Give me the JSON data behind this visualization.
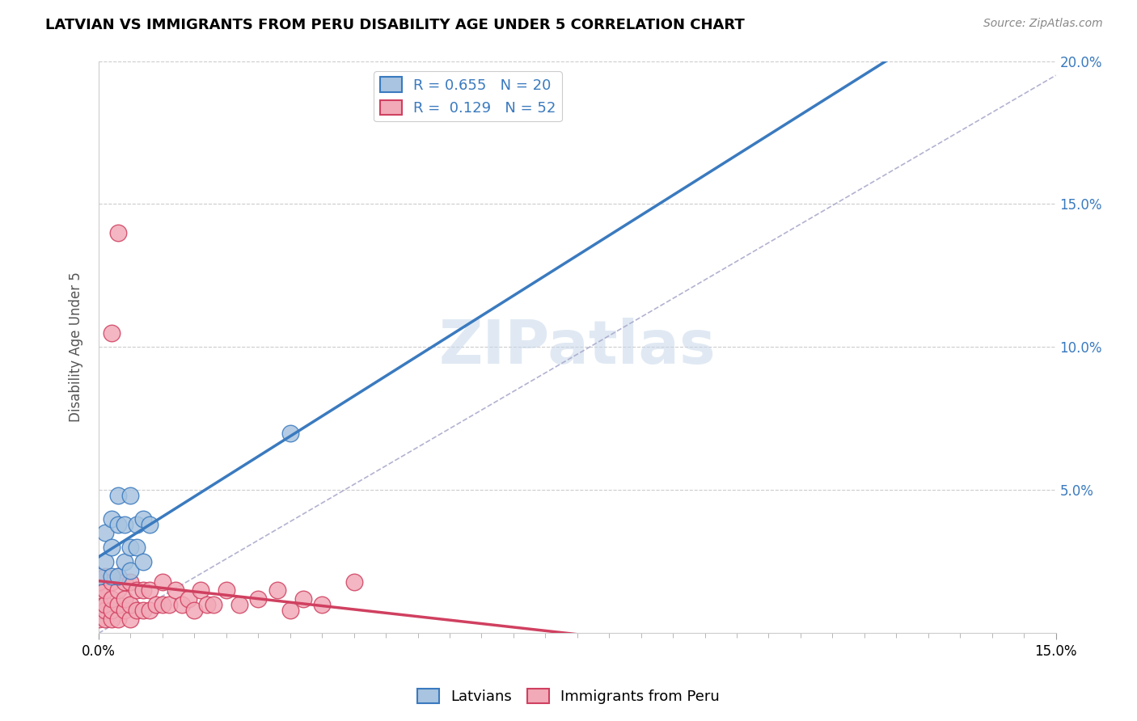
{
  "title": "LATVIAN VS IMMIGRANTS FROM PERU DISABILITY AGE UNDER 5 CORRELATION CHART",
  "source": "Source: ZipAtlas.com",
  "ylabel": "Disability Age Under 5",
  "xlim": [
    0.0,
    0.15
  ],
  "ylim": [
    0.0,
    0.2
  ],
  "latvian_R": 0.655,
  "latvian_N": 20,
  "peru_R": 0.129,
  "peru_N": 52,
  "latvian_color": "#a8c4e0",
  "latvian_line_color": "#3a7abf",
  "peru_color": "#f2aab8",
  "peru_line_color": "#d04060",
  "legend_latvian_label": "Latvians",
  "legend_peru_label": "Immigrants from Peru",
  "watermark": "ZIPatlas",
  "dashed_line_color": "#aaaacc",
  "right_axis_color": "#3a7abf",
  "latvian_x": [
    0.0,
    0.001,
    0.001,
    0.002,
    0.002,
    0.002,
    0.003,
    0.003,
    0.003,
    0.004,
    0.004,
    0.005,
    0.005,
    0.005,
    0.006,
    0.006,
    0.007,
    0.007,
    0.008,
    0.03
  ],
  "latvian_y": [
    0.02,
    0.025,
    0.035,
    0.02,
    0.03,
    0.04,
    0.02,
    0.038,
    0.048,
    0.025,
    0.038,
    0.022,
    0.03,
    0.048,
    0.03,
    0.038,
    0.025,
    0.04,
    0.038,
    0.07
  ],
  "peru_x": [
    0.0,
    0.0,
    0.0,
    0.0,
    0.0,
    0.0,
    0.001,
    0.001,
    0.001,
    0.001,
    0.001,
    0.002,
    0.002,
    0.002,
    0.002,
    0.003,
    0.003,
    0.003,
    0.003,
    0.004,
    0.004,
    0.004,
    0.005,
    0.005,
    0.005,
    0.006,
    0.006,
    0.007,
    0.007,
    0.008,
    0.008,
    0.009,
    0.01,
    0.01,
    0.011,
    0.012,
    0.013,
    0.014,
    0.015,
    0.016,
    0.017,
    0.018,
    0.02,
    0.022,
    0.025,
    0.028,
    0.03,
    0.032,
    0.035,
    0.04,
    0.002,
    0.003
  ],
  "peru_y": [
    0.005,
    0.008,
    0.01,
    0.012,
    0.015,
    0.018,
    0.005,
    0.008,
    0.01,
    0.015,
    0.02,
    0.005,
    0.008,
    0.012,
    0.018,
    0.005,
    0.01,
    0.015,
    0.02,
    0.008,
    0.012,
    0.018,
    0.005,
    0.01,
    0.018,
    0.008,
    0.015,
    0.008,
    0.015,
    0.008,
    0.015,
    0.01,
    0.01,
    0.018,
    0.01,
    0.015,
    0.01,
    0.012,
    0.008,
    0.015,
    0.01,
    0.01,
    0.015,
    0.01,
    0.012,
    0.015,
    0.008,
    0.012,
    0.01,
    0.018,
    0.105,
    0.14
  ],
  "ytick_vals": [
    0.05,
    0.1,
    0.15,
    0.2
  ],
  "ytick_labels": [
    "5.0%",
    "10.0%",
    "15.0%",
    "20.0%"
  ],
  "xtick_major": [
    0.0,
    0.15
  ],
  "xtick_major_labels": [
    "0.0%",
    "15.0%"
  ]
}
